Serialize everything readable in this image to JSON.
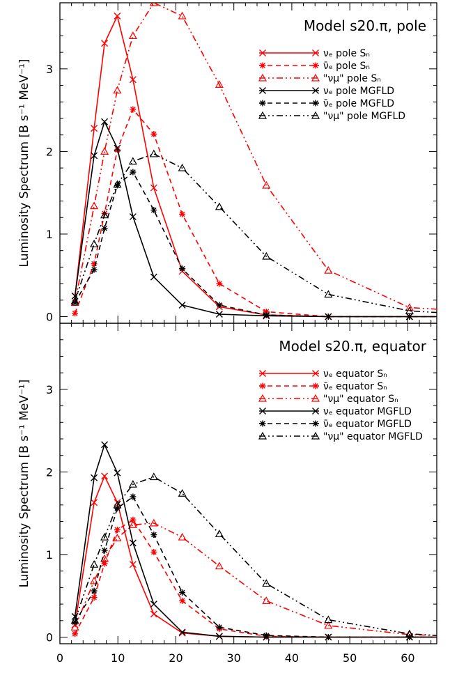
{
  "colors": {
    "sn": "#ff0000",
    "mgfld": "#000000"
  },
  "chart_data": [
    {
      "type": "line",
      "title": "Model s20.π, pole",
      "ylabel": "Luminosity Spectrum [B s⁻¹ MeV⁻¹]",
      "xlabel": "",
      "xlim": [
        0,
        65
      ],
      "ylim": [
        -0.08,
        3.8
      ],
      "xticks": [
        "0",
        "10",
        "20",
        "30",
        "40",
        "50",
        "60"
      ],
      "yticks": [
        "0",
        "1",
        "2",
        "3"
      ],
      "legend_position": "top-right",
      "series": [
        {
          "name": "νₑ pole Sₙ",
          "color": "#ff0000",
          "dash": "solid",
          "marker": "x",
          "x": [
            2.6,
            5.9,
            7.7,
            9.9,
            12.6,
            16.2,
            21.1,
            27.5,
            35.6,
            46.3,
            60.3,
            65
          ],
          "y": [
            0.25,
            2.28,
            3.31,
            3.64,
            2.87,
            1.56,
            0.55,
            0.12,
            0.02,
            0.0,
            0.0,
            0.0
          ]
        },
        {
          "name": "ν̄ₑ pole Sₙ",
          "color": "#ff0000",
          "dash": "dashed",
          "marker": "asterisk",
          "x": [
            2.6,
            5.9,
            7.7,
            9.9,
            12.6,
            16.2,
            21.1,
            27.5,
            35.6,
            46.3,
            60.3,
            65
          ],
          "y": [
            0.04,
            0.64,
            1.25,
            2.02,
            2.51,
            2.21,
            1.24,
            0.4,
            0.06,
            0.0,
            0.0,
            0.0
          ]
        },
        {
          "name": "\"νμ\" pole Sₙ",
          "color": "#ff0000",
          "dash": "dashdotdot",
          "marker": "triangle",
          "x": [
            2.6,
            5.9,
            7.7,
            9.9,
            12.6,
            16.2,
            21.1,
            27.5,
            35.6,
            46.3,
            60.3,
            65
          ],
          "y": [
            0.17,
            1.34,
            2.0,
            2.74,
            3.4,
            3.8,
            3.64,
            2.81,
            1.59,
            0.56,
            0.11,
            0.09
          ]
        },
        {
          "name": "νₑ pole MGFLD",
          "color": "#000000",
          "dash": "solid",
          "marker": "x",
          "x": [
            2.6,
            5.9,
            7.7,
            9.9,
            12.6,
            16.2,
            21.1,
            27.5,
            35.6,
            46.3,
            60.3,
            65
          ],
          "y": [
            0.25,
            1.95,
            2.36,
            2.04,
            1.21,
            0.48,
            0.14,
            0.03,
            0.01,
            0.0,
            0.0,
            0.0
          ]
        },
        {
          "name": "ν̄ₑ pole MGFLD",
          "color": "#000000",
          "dash": "dashed",
          "marker": "asterisk",
          "x": [
            2.6,
            5.9,
            7.7,
            9.9,
            12.6,
            16.2,
            21.1,
            27.5,
            35.6,
            46.3,
            60.3,
            65
          ],
          "y": [
            0.17,
            0.57,
            1.07,
            1.59,
            1.75,
            1.29,
            0.58,
            0.14,
            0.02,
            0.0,
            0.0,
            0.0
          ]
        },
        {
          "name": "\"νμ\" pole MGFLD",
          "color": "#000000",
          "dash": "dashdotdot",
          "marker": "triangle",
          "x": [
            2.6,
            5.9,
            7.7,
            9.9,
            12.6,
            16.2,
            21.1,
            27.5,
            35.6,
            46.3,
            60.3,
            65
          ],
          "y": [
            0.19,
            0.88,
            1.23,
            1.6,
            1.88,
            1.97,
            1.8,
            1.33,
            0.73,
            0.27,
            0.07,
            0.05
          ]
        }
      ]
    },
    {
      "type": "line",
      "title": "Model s20.π, equator",
      "ylabel": "Luminosity Spectrum [B s⁻¹ MeV⁻¹]",
      "xlabel": "",
      "xlim": [
        0,
        65
      ],
      "ylim": [
        -0.08,
        3.8
      ],
      "xticks": [
        "0",
        "10",
        "20",
        "30",
        "40",
        "50",
        "60"
      ],
      "yticks": [
        "0",
        "1",
        "2",
        "3"
      ],
      "legend_position": "top-right",
      "series": [
        {
          "name": "νₑ equator Sₙ",
          "color": "#ff0000",
          "dash": "solid",
          "marker": "x",
          "x": [
            2.6,
            5.9,
            7.7,
            9.9,
            12.6,
            16.2,
            21.1,
            27.5,
            35.6,
            46.3,
            60.3,
            65
          ],
          "y": [
            0.15,
            1.63,
            1.95,
            1.63,
            0.88,
            0.28,
            0.05,
            0.01,
            0.0,
            0.0,
            0.0,
            0.0
          ]
        },
        {
          "name": "ν̄ₑ equator Sₙ",
          "color": "#ff0000",
          "dash": "dashed",
          "marker": "asterisk",
          "x": [
            2.6,
            5.9,
            7.7,
            9.9,
            12.6,
            16.2,
            21.1,
            27.5,
            35.6,
            46.3,
            60.3,
            65
          ],
          "y": [
            0.04,
            0.48,
            0.89,
            1.3,
            1.42,
            1.03,
            0.44,
            0.1,
            0.01,
            0.0,
            0.0,
            0.0
          ]
        },
        {
          "name": "\"νμ\" equator Sₙ",
          "color": "#ff0000",
          "dash": "dashdotdot",
          "marker": "triangle",
          "x": [
            2.6,
            5.9,
            7.7,
            9.9,
            12.6,
            16.2,
            21.1,
            27.5,
            35.6,
            46.3,
            60.3,
            65
          ],
          "y": [
            0.12,
            0.68,
            0.95,
            1.2,
            1.36,
            1.38,
            1.21,
            0.86,
            0.44,
            0.14,
            0.03,
            0.02
          ]
        },
        {
          "name": "νₑ equator MGFLD",
          "color": "#000000",
          "dash": "solid",
          "marker": "x",
          "x": [
            2.6,
            5.9,
            7.7,
            9.9,
            12.6,
            16.2,
            21.1,
            27.5,
            35.6,
            46.3,
            60.3,
            65
          ],
          "y": [
            0.25,
            1.93,
            2.33,
            1.99,
            1.14,
            0.4,
            0.06,
            0.01,
            0.0,
            0.0,
            0.0,
            0.0
          ]
        },
        {
          "name": "ν̄ₑ equator MGFLD",
          "color": "#000000",
          "dash": "dashed",
          "marker": "asterisk",
          "x": [
            2.6,
            5.9,
            7.7,
            9.9,
            12.6,
            16.2,
            21.1,
            27.5,
            35.6,
            46.3,
            60.3,
            65
          ],
          "y": [
            0.18,
            0.56,
            1.05,
            1.56,
            1.7,
            1.24,
            0.54,
            0.12,
            0.02,
            0.0,
            0.0,
            0.0
          ]
        },
        {
          "name": "\"νμ\" equator MGFLD",
          "color": "#000000",
          "dash": "dashdotdot",
          "marker": "triangle",
          "x": [
            2.6,
            5.9,
            7.7,
            9.9,
            12.6,
            16.2,
            21.1,
            27.5,
            35.6,
            46.3,
            60.3,
            65
          ],
          "y": [
            0.2,
            0.88,
            1.21,
            1.6,
            1.85,
            1.94,
            1.74,
            1.25,
            0.65,
            0.21,
            0.04,
            0.02
          ]
        }
      ]
    }
  ]
}
